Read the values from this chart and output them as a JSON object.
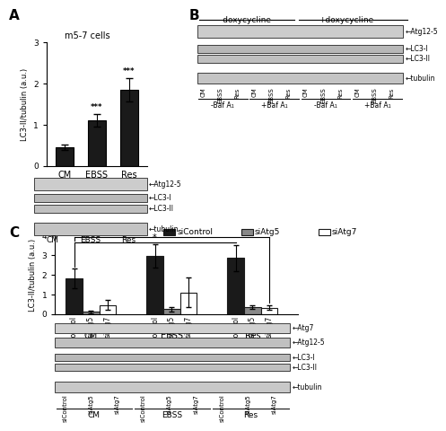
{
  "panel_A": {
    "title": "m5-7 cells",
    "ylabel": "LC3-II/tubulin (a.u.)",
    "categories": [
      "CM",
      "EBSS",
      "Res"
    ],
    "values": [
      0.45,
      1.1,
      1.85
    ],
    "errors": [
      0.07,
      0.15,
      0.28
    ],
    "bar_color": "#1a1a1a",
    "stars": [
      "",
      "***",
      "***"
    ],
    "ylim": [
      0,
      3
    ],
    "yticks": [
      0,
      1,
      2,
      3
    ],
    "blot_labels": [
      "←Atg12-5",
      "←LC3-I",
      "←LC3-II",
      "←tubulin"
    ]
  },
  "panel_B": {
    "title_left": "-doxycycline",
    "title_right": "+doxycycline",
    "col_labels": [
      "CM",
      "EBSS",
      "Res",
      "CM",
      "EBSS",
      "Res",
      "CM",
      "EBSS",
      "Res",
      "CM",
      "EBSS",
      "Res"
    ],
    "baf_labels": [
      "-Baf A₁",
      "+Baf A₁",
      "-Baf A₁",
      "+Baf A₁"
    ],
    "blot_labels": [
      "←Atg12-5",
      "←LC3-I",
      "←LC3-II",
      "←tubulin"
    ]
  },
  "panel_C": {
    "ylabel": "LC3-II/tubulin (a.u.)",
    "group_labels": [
      "CM",
      "EBSS",
      "Res"
    ],
    "bar_labels": [
      "siControl",
      "siAtg5",
      "siAtg7"
    ],
    "bar_colors": [
      "#1a1a1a",
      "#888888",
      "#ffffff"
    ],
    "bar_edgecolors": [
      "#1a1a1a",
      "#1a1a1a",
      "#1a1a1a"
    ],
    "values": [
      [
        1.8,
        0.1,
        0.45
      ],
      [
        2.95,
        0.25,
        1.1
      ],
      [
        2.85,
        0.35,
        0.32
      ]
    ],
    "errors": [
      [
        0.5,
        0.07,
        0.25
      ],
      [
        0.6,
        0.12,
        0.75
      ],
      [
        0.65,
        0.1,
        0.12
      ]
    ],
    "ylim": [
      0,
      4
    ],
    "yticks": [
      0,
      1,
      2,
      3,
      4
    ],
    "blot_labels": [
      "←Atg7",
      "←Atg12-5",
      "←LC3-I",
      "←LC3-II",
      "←tubulin"
    ]
  },
  "bg_color": "#ffffff",
  "label_A": "A",
  "label_B": "B",
  "label_C": "C"
}
